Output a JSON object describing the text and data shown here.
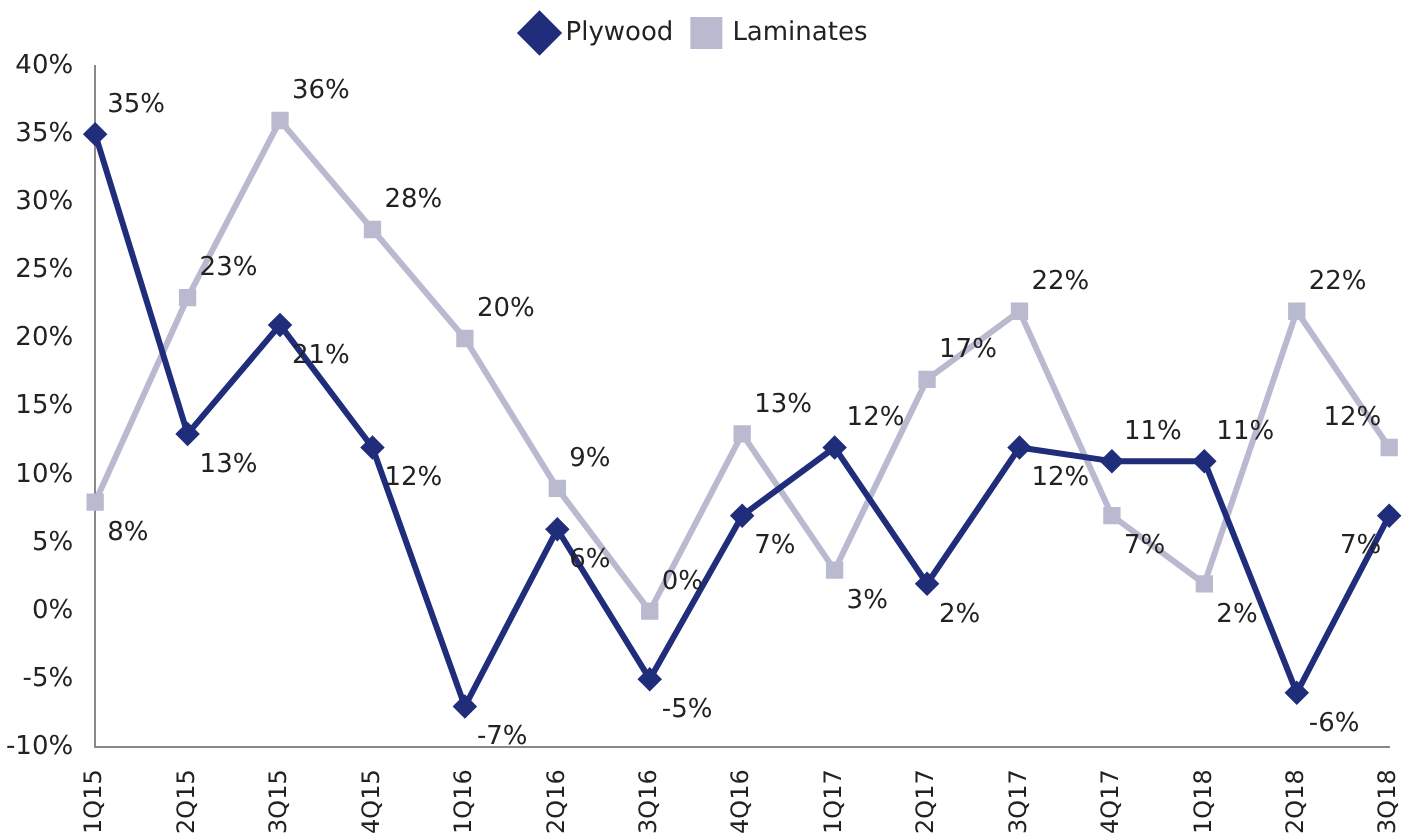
{
  "chart_data": {
    "type": "line",
    "categories": [
      "1Q15",
      "2Q15",
      "3Q15",
      "4Q15",
      "1Q16",
      "2Q16",
      "3Q16",
      "4Q16",
      "1Q17",
      "2Q17",
      "3Q17",
      "4Q17",
      "1Q18",
      "2Q18",
      "3Q18"
    ],
    "series": [
      {
        "name": "Plywood",
        "color": "#1f2d7b",
        "marker": "diamond",
        "values": [
          35,
          13,
          21,
          12,
          -7,
          6,
          -5,
          7,
          12,
          2,
          12,
          11,
          11,
          -6,
          7
        ],
        "value_labels": [
          "35%",
          "13%",
          "21%",
          "12%",
          "-7%",
          "6%",
          "-5%",
          "7%",
          "12%",
          "2%",
          "12%",
          "11%",
          "11%",
          "-6%",
          "7%"
        ]
      },
      {
        "name": "Laminates",
        "color": "#b9b9cf",
        "marker": "square",
        "values": [
          8,
          23,
          36,
          28,
          20,
          9,
          0,
          13,
          3,
          17,
          22,
          7,
          2,
          22,
          12
        ],
        "value_labels": [
          "8%",
          "23%",
          "36%",
          "28%",
          "20%",
          "9%",
          "0%",
          "13%",
          "3%",
          "17%",
          "22%",
          "7%",
          "2%",
          "22%",
          "12%"
        ]
      }
    ],
    "ylim": [
      -10,
      40
    ],
    "yticks": [
      {
        "value": -10,
        "label": "-10%"
      },
      {
        "value": -5,
        "label": "-5%"
      },
      {
        "value": 0,
        "label": "0%"
      },
      {
        "value": 5,
        "label": "5%"
      },
      {
        "value": 10,
        "label": "10%"
      },
      {
        "value": 15,
        "label": "15%"
      },
      {
        "value": 20,
        "label": "20%"
      },
      {
        "value": 25,
        "label": "25%"
      },
      {
        "value": 30,
        "label": "30%"
      },
      {
        "value": 35,
        "label": "35%"
      },
      {
        "value": 40,
        "label": "40%"
      }
    ],
    "grid": false,
    "legend": "top",
    "line_style": "solid"
  }
}
